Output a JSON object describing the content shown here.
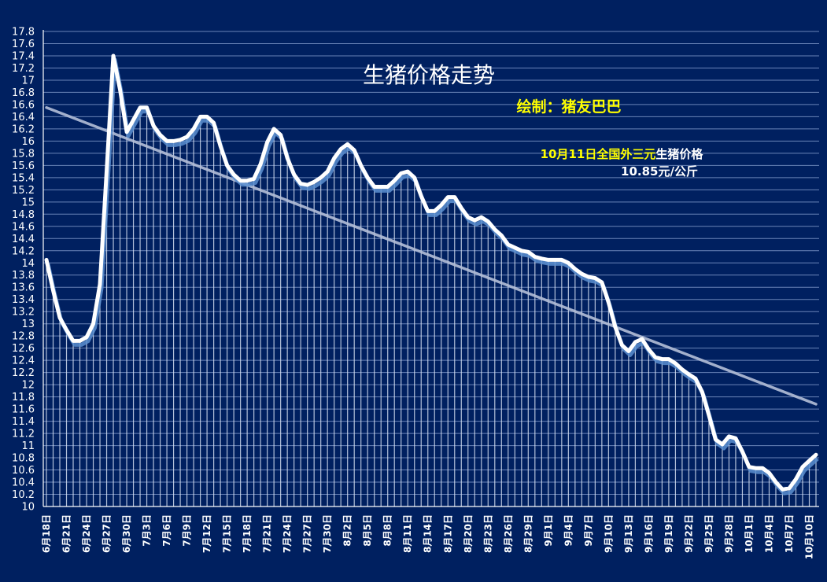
{
  "chart_data": {
    "type": "line",
    "title": "生猪价格走势",
    "subtitle": "绘制：猪友巴巴",
    "annotation": {
      "date_text": "10月11日",
      "region_text": "全国外三元",
      "suffix_text": "生猪价格",
      "price_text": "10.85元/公斤"
    },
    "ylim": [
      10,
      17.8
    ],
    "ytick_step": 0.2,
    "yticks": [
      "10",
      "10.2",
      "10.4",
      "10.6",
      "10.8",
      "11",
      "11.2",
      "11.4",
      "11.6",
      "11.8",
      "12",
      "12.2",
      "12.4",
      "12.6",
      "12.8",
      "13",
      "13.2",
      "13.4",
      "13.6",
      "13.8",
      "14",
      "14.2",
      "14.4",
      "14.6",
      "14.8",
      "15",
      "15.2",
      "15.4",
      "15.6",
      "15.8",
      "16",
      "16.2",
      "16.4",
      "16.6",
      "16.8",
      "17",
      "17.2",
      "17.4",
      "17.6",
      "17.8"
    ],
    "xticks": [
      "6月18日",
      "6月21日",
      "6月24日",
      "6月27日",
      "6月30日",
      "7月3日",
      "7月6日",
      "7月9日",
      "7月12日",
      "7月15日",
      "7月18日",
      "7月21日",
      "7月24日",
      "7月27日",
      "7月30日",
      "8月2日",
      "8月5日",
      "8月8日",
      "8月11日",
      "8月14日",
      "8月17日",
      "8月20日",
      "8月23日",
      "8月26日",
      "8月29日",
      "9月1日",
      "9月4日",
      "9月7日",
      "9月10日",
      "9月13日",
      "9月16日",
      "9月19日",
      "9月22日",
      "9月25日",
      "9月28日",
      "10月1日",
      "10月4日",
      "10月7日",
      "10月10日"
    ],
    "xtick_every": 3,
    "series": [
      {
        "values": [
          14.05,
          13.55,
          13.1,
          12.9,
          12.72,
          12.72,
          12.78,
          13.0,
          13.65,
          15.5,
          17.4,
          16.85,
          16.15,
          16.35,
          16.55,
          16.55,
          16.25,
          16.1,
          16.0,
          16.0,
          16.02,
          16.07,
          16.2,
          16.4,
          16.4,
          16.3,
          15.92,
          15.6,
          15.45,
          15.35,
          15.35,
          15.38,
          15.62,
          15.98,
          16.2,
          16.1,
          15.72,
          15.45,
          15.3,
          15.28,
          15.33,
          15.4,
          15.5,
          15.72,
          15.87,
          15.95,
          15.85,
          15.6,
          15.4,
          15.25,
          15.25,
          15.25,
          15.35,
          15.47,
          15.5,
          15.4,
          15.1,
          14.85,
          14.85,
          14.95,
          15.08,
          15.08,
          14.9,
          14.75,
          14.7,
          14.75,
          14.68,
          14.55,
          14.45,
          14.3,
          14.25,
          14.2,
          14.18,
          14.1,
          14.07,
          14.05,
          14.05,
          14.05,
          14.0,
          13.9,
          13.82,
          13.77,
          13.75,
          13.68,
          13.35,
          12.95,
          12.65,
          12.55,
          12.7,
          12.75,
          12.58,
          12.45,
          12.42,
          12.42,
          12.35,
          12.25,
          12.17,
          12.1,
          11.88,
          11.5,
          11.1,
          11.02,
          11.15,
          11.12,
          10.9,
          10.65,
          10.63,
          10.63,
          10.55,
          10.4,
          10.28,
          10.3,
          10.45,
          10.65,
          10.75,
          10.85
        ]
      }
    ],
    "trendline": {
      "start": 16.55,
      "end": 11.68
    },
    "colors": {
      "background": "#002060",
      "line": "#ffffff",
      "shadow": "#5a8fd0",
      "trend": "#b4bfd8",
      "grid": "#8ea6d6",
      "subtitle": "#ffff00"
    }
  }
}
